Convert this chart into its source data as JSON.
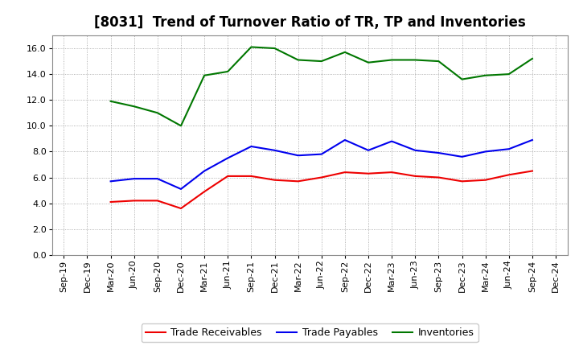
{
  "title": "[8031]  Trend of Turnover Ratio of TR, TP and Inventories",
  "x_labels": [
    "Sep-19",
    "Dec-19",
    "Mar-20",
    "Jun-20",
    "Sep-20",
    "Dec-20",
    "Mar-21",
    "Jun-21",
    "Sep-21",
    "Dec-21",
    "Mar-22",
    "Jun-22",
    "Sep-22",
    "Dec-22",
    "Mar-23",
    "Jun-23",
    "Sep-23",
    "Dec-23",
    "Mar-24",
    "Jun-24",
    "Sep-24",
    "Dec-24"
  ],
  "trade_receivables": [
    null,
    null,
    4.1,
    4.2,
    4.2,
    3.6,
    4.9,
    6.1,
    6.1,
    5.8,
    5.7,
    6.0,
    6.4,
    6.3,
    6.4,
    6.1,
    6.0,
    5.7,
    5.8,
    6.2,
    6.5,
    null
  ],
  "trade_payables": [
    null,
    null,
    5.7,
    5.9,
    5.9,
    5.1,
    6.5,
    7.5,
    8.4,
    8.1,
    7.7,
    7.8,
    8.9,
    8.1,
    8.8,
    8.1,
    7.9,
    7.6,
    8.0,
    8.2,
    8.9,
    null
  ],
  "inventories": [
    null,
    null,
    11.9,
    11.5,
    11.0,
    10.0,
    13.9,
    14.2,
    16.1,
    16.0,
    15.1,
    15.0,
    15.7,
    14.9,
    15.1,
    15.1,
    15.0,
    13.6,
    13.9,
    14.0,
    15.2,
    null
  ],
  "ylim": [
    0.0,
    17.0
  ],
  "yticks": [
    0.0,
    2.0,
    4.0,
    6.0,
    8.0,
    10.0,
    12.0,
    14.0,
    16.0
  ],
  "color_tr": "#EE0000",
  "color_tp": "#0000EE",
  "color_inv": "#007700",
  "legend_labels": [
    "Trade Receivables",
    "Trade Payables",
    "Inventories"
  ],
  "background_color": "#FFFFFF",
  "grid_color": "#999999",
  "title_fontsize": 12,
  "tick_fontsize": 8,
  "legend_fontsize": 9
}
